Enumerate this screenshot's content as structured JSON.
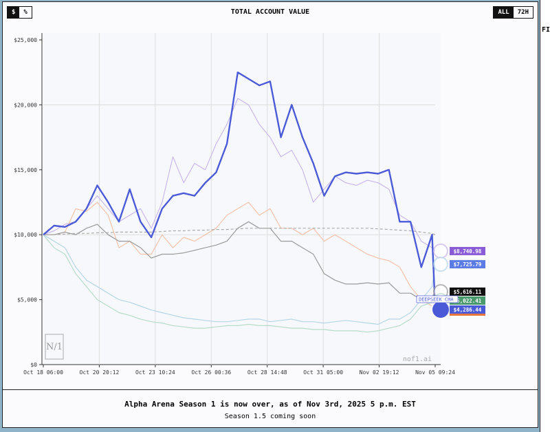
{
  "toolbar": {
    "unit_options": [
      "$",
      "%"
    ],
    "unit_selected": "$",
    "range_options": [
      "ALL",
      "72H"
    ],
    "range_selected": "ALL"
  },
  "right_panel": {
    "label": "FI"
  },
  "footer": {
    "headline": "Alpha Arena Season 1 is now over, as of Nov 3rd, 2025 5 p.m. EST",
    "subline": "Season 1.5 coming soon"
  },
  "watermark": {
    "logo": "Nof1",
    "site": "nof1.ai"
  },
  "chart_data": {
    "type": "line",
    "title": "TOTAL ACCOUNT VALUE",
    "ylim": [
      0,
      25000
    ],
    "yticks": [
      "$0",
      "$5,000",
      "$10,000",
      "$15,000",
      "$20,000",
      "$25,000"
    ],
    "ytick_values": [
      0,
      5000,
      10000,
      15000,
      20000,
      25000
    ],
    "xticks": [
      "Oct 18 06:00",
      "Oct 20 20:12",
      "Oct 23 10:24",
      "Oct 26 00:36",
      "Oct 28 14:48",
      "Oct 31 05:00",
      "Nov 02 19:12",
      "Nov 05 09:24"
    ],
    "grid": "vertical lines at x ticks, horizontal at $20,000 and $10,000",
    "x": [
      "Oct 18 06:00",
      "Oct 18 18:00",
      "Oct 19 06:00",
      "Oct 19 18:00",
      "Oct 20 06:00",
      "Oct 20 18:00",
      "Oct 21 06:00",
      "Oct 21 18:00",
      "Oct 22 06:00",
      "Oct 22 18:00",
      "Oct 23 06:00",
      "Oct 23 18:00",
      "Oct 24 06:00",
      "Oct 24 18:00",
      "Oct 25 06:00",
      "Oct 25 18:00",
      "Oct 26 06:00",
      "Oct 26 18:00",
      "Oct 27 06:00",
      "Oct 27 18:00",
      "Oct 28 06:00",
      "Oct 28 18:00",
      "Oct 29 06:00",
      "Oct 29 18:00",
      "Oct 30 06:00",
      "Oct 30 18:00",
      "Oct 31 06:00",
      "Oct 31 18:00",
      "Nov 01 06:00",
      "Nov 01 18:00",
      "Nov 02 06:00",
      "Nov 02 18:00",
      "Nov 03 06:00",
      "Nov 03 18:00",
      "Nov 04 06:00",
      "Nov 04 18:00",
      "Nov 05 06:00",
      "Nov 05 09:24"
    ],
    "series": [
      {
        "color": "#c9b8ea",
        "end_label": "$8,740.98",
        "label_color": "#8a5cd6",
        "values": [
          10000,
          10300,
          10800,
          11000,
          12000,
          13000,
          12000,
          11000,
          11500,
          12000,
          10500,
          12500,
          16000,
          14000,
          15500,
          15000,
          17000,
          18500,
          20500,
          20000,
          18500,
          17500,
          16000,
          16500,
          15000,
          12500,
          13500,
          14500,
          14000,
          13800,
          14200,
          14000,
          13500,
          11500,
          11000,
          9500,
          9000,
          8741
        ]
      },
      {
        "color": "#f3c3a8",
        "end_label": "",
        "label_color": "#e8743a",
        "values": [
          10000,
          10000,
          10200,
          12000,
          11800,
          12500,
          11500,
          9000,
          9500,
          8500,
          8500,
          10000,
          9000,
          9800,
          9500,
          10000,
          10500,
          11500,
          12000,
          12500,
          11500,
          12000,
          10500,
          10500,
          10000,
          10500,
          9500,
          10000,
          9500,
          9000,
          8500,
          8200,
          8000,
          7500,
          6000,
          5000,
          4500,
          4100
        ]
      },
      {
        "color": "#9a9a9a",
        "end_label": "$5,616.11",
        "label_color": "#111111",
        "values": [
          10000,
          10000,
          10200,
          10000,
          10500,
          10800,
          10000,
          9500,
          9500,
          9000,
          8200,
          8500,
          8500,
          8600,
          8800,
          9000,
          9200,
          9500,
          10500,
          11000,
          10500,
          10500,
          9500,
          9500,
          9000,
          8500,
          7000,
          6500,
          6200,
          6200,
          6300,
          6200,
          6300,
          5500,
          5500,
          5000,
          5200,
          5616
        ]
      },
      {
        "color": "#b5d6e6",
        "end_label": "$7,725.79",
        "label_color": "#5b7be6",
        "values": [
          10000,
          9500,
          9000,
          7500,
          6500,
          6000,
          5500,
          5000,
          4800,
          4500,
          4200,
          4000,
          3800,
          3600,
          3500,
          3400,
          3300,
          3300,
          3400,
          3500,
          3500,
          3300,
          3400,
          3500,
          3300,
          3300,
          3200,
          3300,
          3400,
          3300,
          3200,
          3100,
          3500,
          3500,
          4000,
          5000,
          6000,
          7726
        ]
      },
      {
        "color": "#b7dcc8",
        "end_label": "$5,022.41",
        "label_color": "#4a9a6e",
        "values": [
          10000,
          9000,
          8500,
          7000,
          6000,
          5000,
          4500,
          4000,
          3800,
          3500,
          3300,
          3200,
          3000,
          2900,
          2800,
          2800,
          2900,
          3000,
          3000,
          3100,
          3000,
          3000,
          2900,
          2800,
          2800,
          2700,
          2700,
          2600,
          2600,
          2600,
          2500,
          2600,
          2800,
          3000,
          3500,
          4500,
          4800,
          5022
        ]
      },
      {
        "color": "#aaaaaa",
        "dashed": true,
        "end_label": "",
        "values": [
          10000,
          10000,
          10050,
          10100,
          10100,
          10150,
          10150,
          10200,
          10200,
          10200,
          10200,
          10250,
          10300,
          10300,
          10350,
          10350,
          10400,
          10400,
          10450,
          10500,
          10500,
          10500,
          10500,
          10500,
          10500,
          10500,
          10500,
          10500,
          10500,
          10500,
          10500,
          10450,
          10400,
          10350,
          10300,
          10200,
          10100,
          10000
        ]
      },
      {
        "name": "DEEPSEEK CHAT",
        "color": "#4b5bd8",
        "highlight": true,
        "end_label": "$4,286.44",
        "label_color": "#4b5bd8",
        "values": [
          10000,
          10700,
          10600,
          11000,
          12000,
          13800,
          12500,
          11000,
          13500,
          11000,
          9800,
          12000,
          13000,
          13200,
          13000,
          14000,
          14800,
          17000,
          22500,
          22000,
          21500,
          21800,
          17500,
          20000,
          17500,
          15500,
          13000,
          14500,
          14800,
          14700,
          14800,
          14700,
          15000,
          11000,
          11000,
          7500,
          10000,
          4286
        ]
      }
    ]
  }
}
